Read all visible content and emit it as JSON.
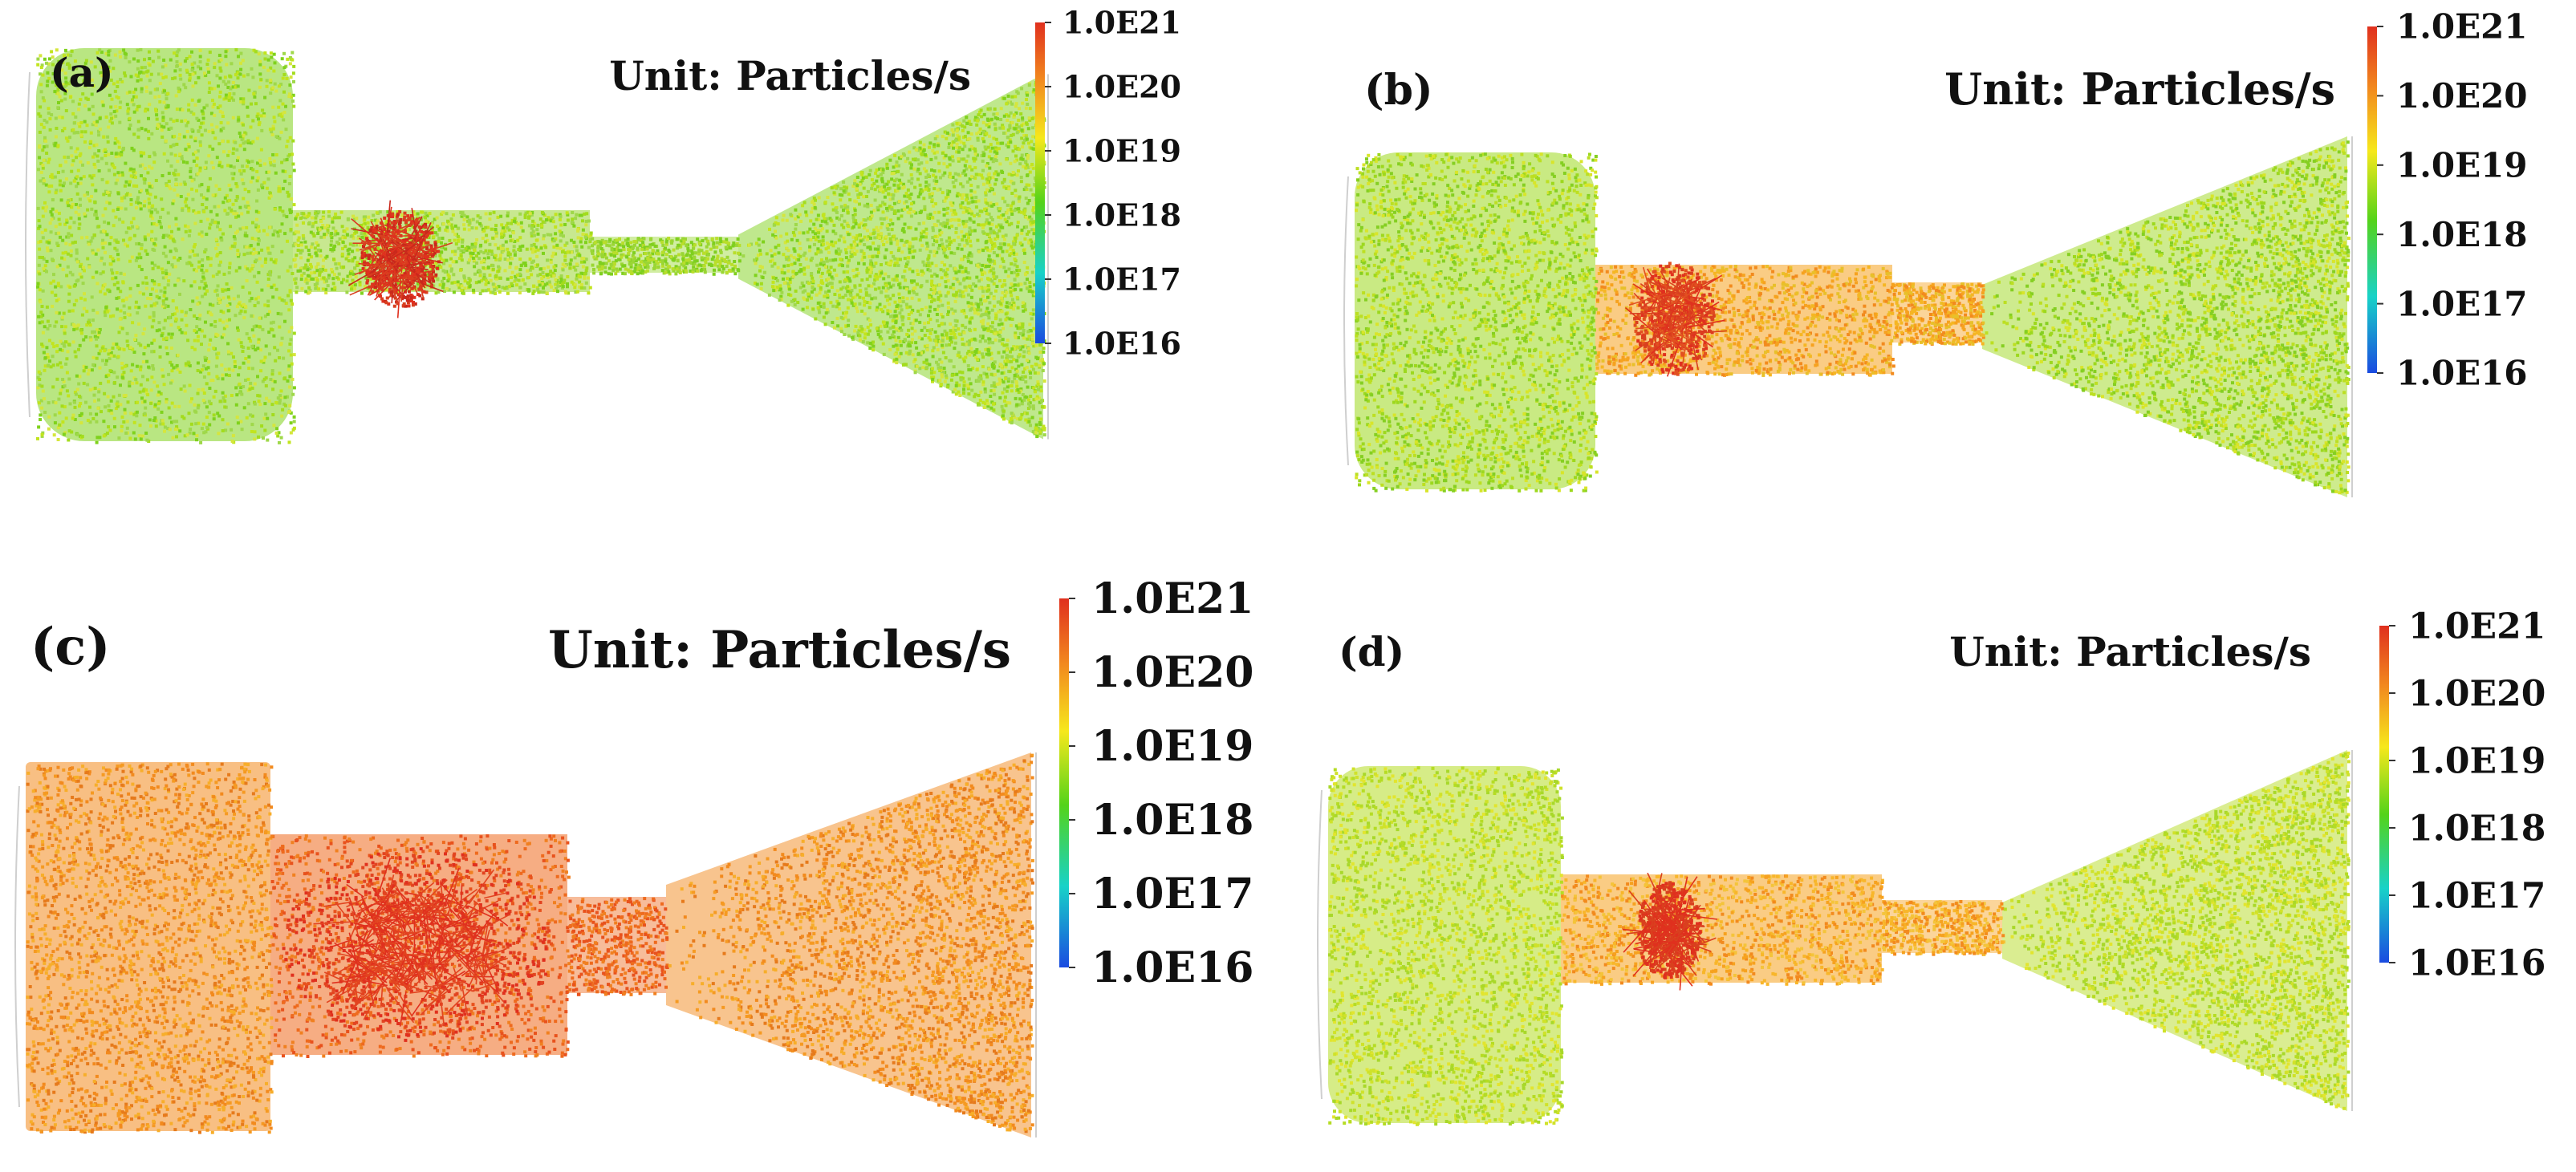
{
  "unit_label": "Unit: Particles/s",
  "colorbar_ticks": [
    "1.0E21",
    "1.0E20",
    "1.0E19",
    "1.0E18",
    "1.0E17",
    "1.0E16"
  ],
  "colors": {
    "scale": [
      "#e0301e",
      "#f28a1e",
      "#f6e81c",
      "#54d31a",
      "#18d2c8",
      "#1a4be0"
    ]
  },
  "panels": [
    {
      "label": "(a)",
      "palette": [
        "#7fd21c",
        "#a3dc1d",
        "#c2e41e",
        "#9fd84a",
        "#d5e63d"
      ],
      "throat_palette": [
        "#9ad634",
        "#b8de2b",
        "#7fcf1f"
      ],
      "hot_palette": [
        "#e0301e",
        "#d9401f",
        "#c9281c"
      ]
    },
    {
      "label": "(b)",
      "palette": [
        "#9dd81e",
        "#bcdf22",
        "#d8e52a",
        "#85cf22"
      ],
      "throat_palette": [
        "#f6a21f",
        "#f5b623",
        "#f28a1e",
        "#e8c02a"
      ],
      "hot_palette": [
        "#e0301e",
        "#d9401f",
        "#e25020"
      ]
    },
    {
      "label": "(c)",
      "palette": [
        "#f28a1e",
        "#f59a22",
        "#f7ae2a",
        "#e67a1c"
      ],
      "throat_palette": [
        "#ee6a1e",
        "#e8521d",
        "#f08020"
      ],
      "hot_palette": [
        "#e0301e",
        "#e24420"
      ]
    },
    {
      "label": "(d)",
      "palette": [
        "#b5dc24",
        "#cfe22a",
        "#e2e52e",
        "#a8d82a"
      ],
      "throat_palette": [
        "#f6a21f",
        "#f8b62a",
        "#f28a1e",
        "#f4c43a"
      ],
      "hot_palette": [
        "#e0301e",
        "#d9401f"
      ]
    }
  ]
}
